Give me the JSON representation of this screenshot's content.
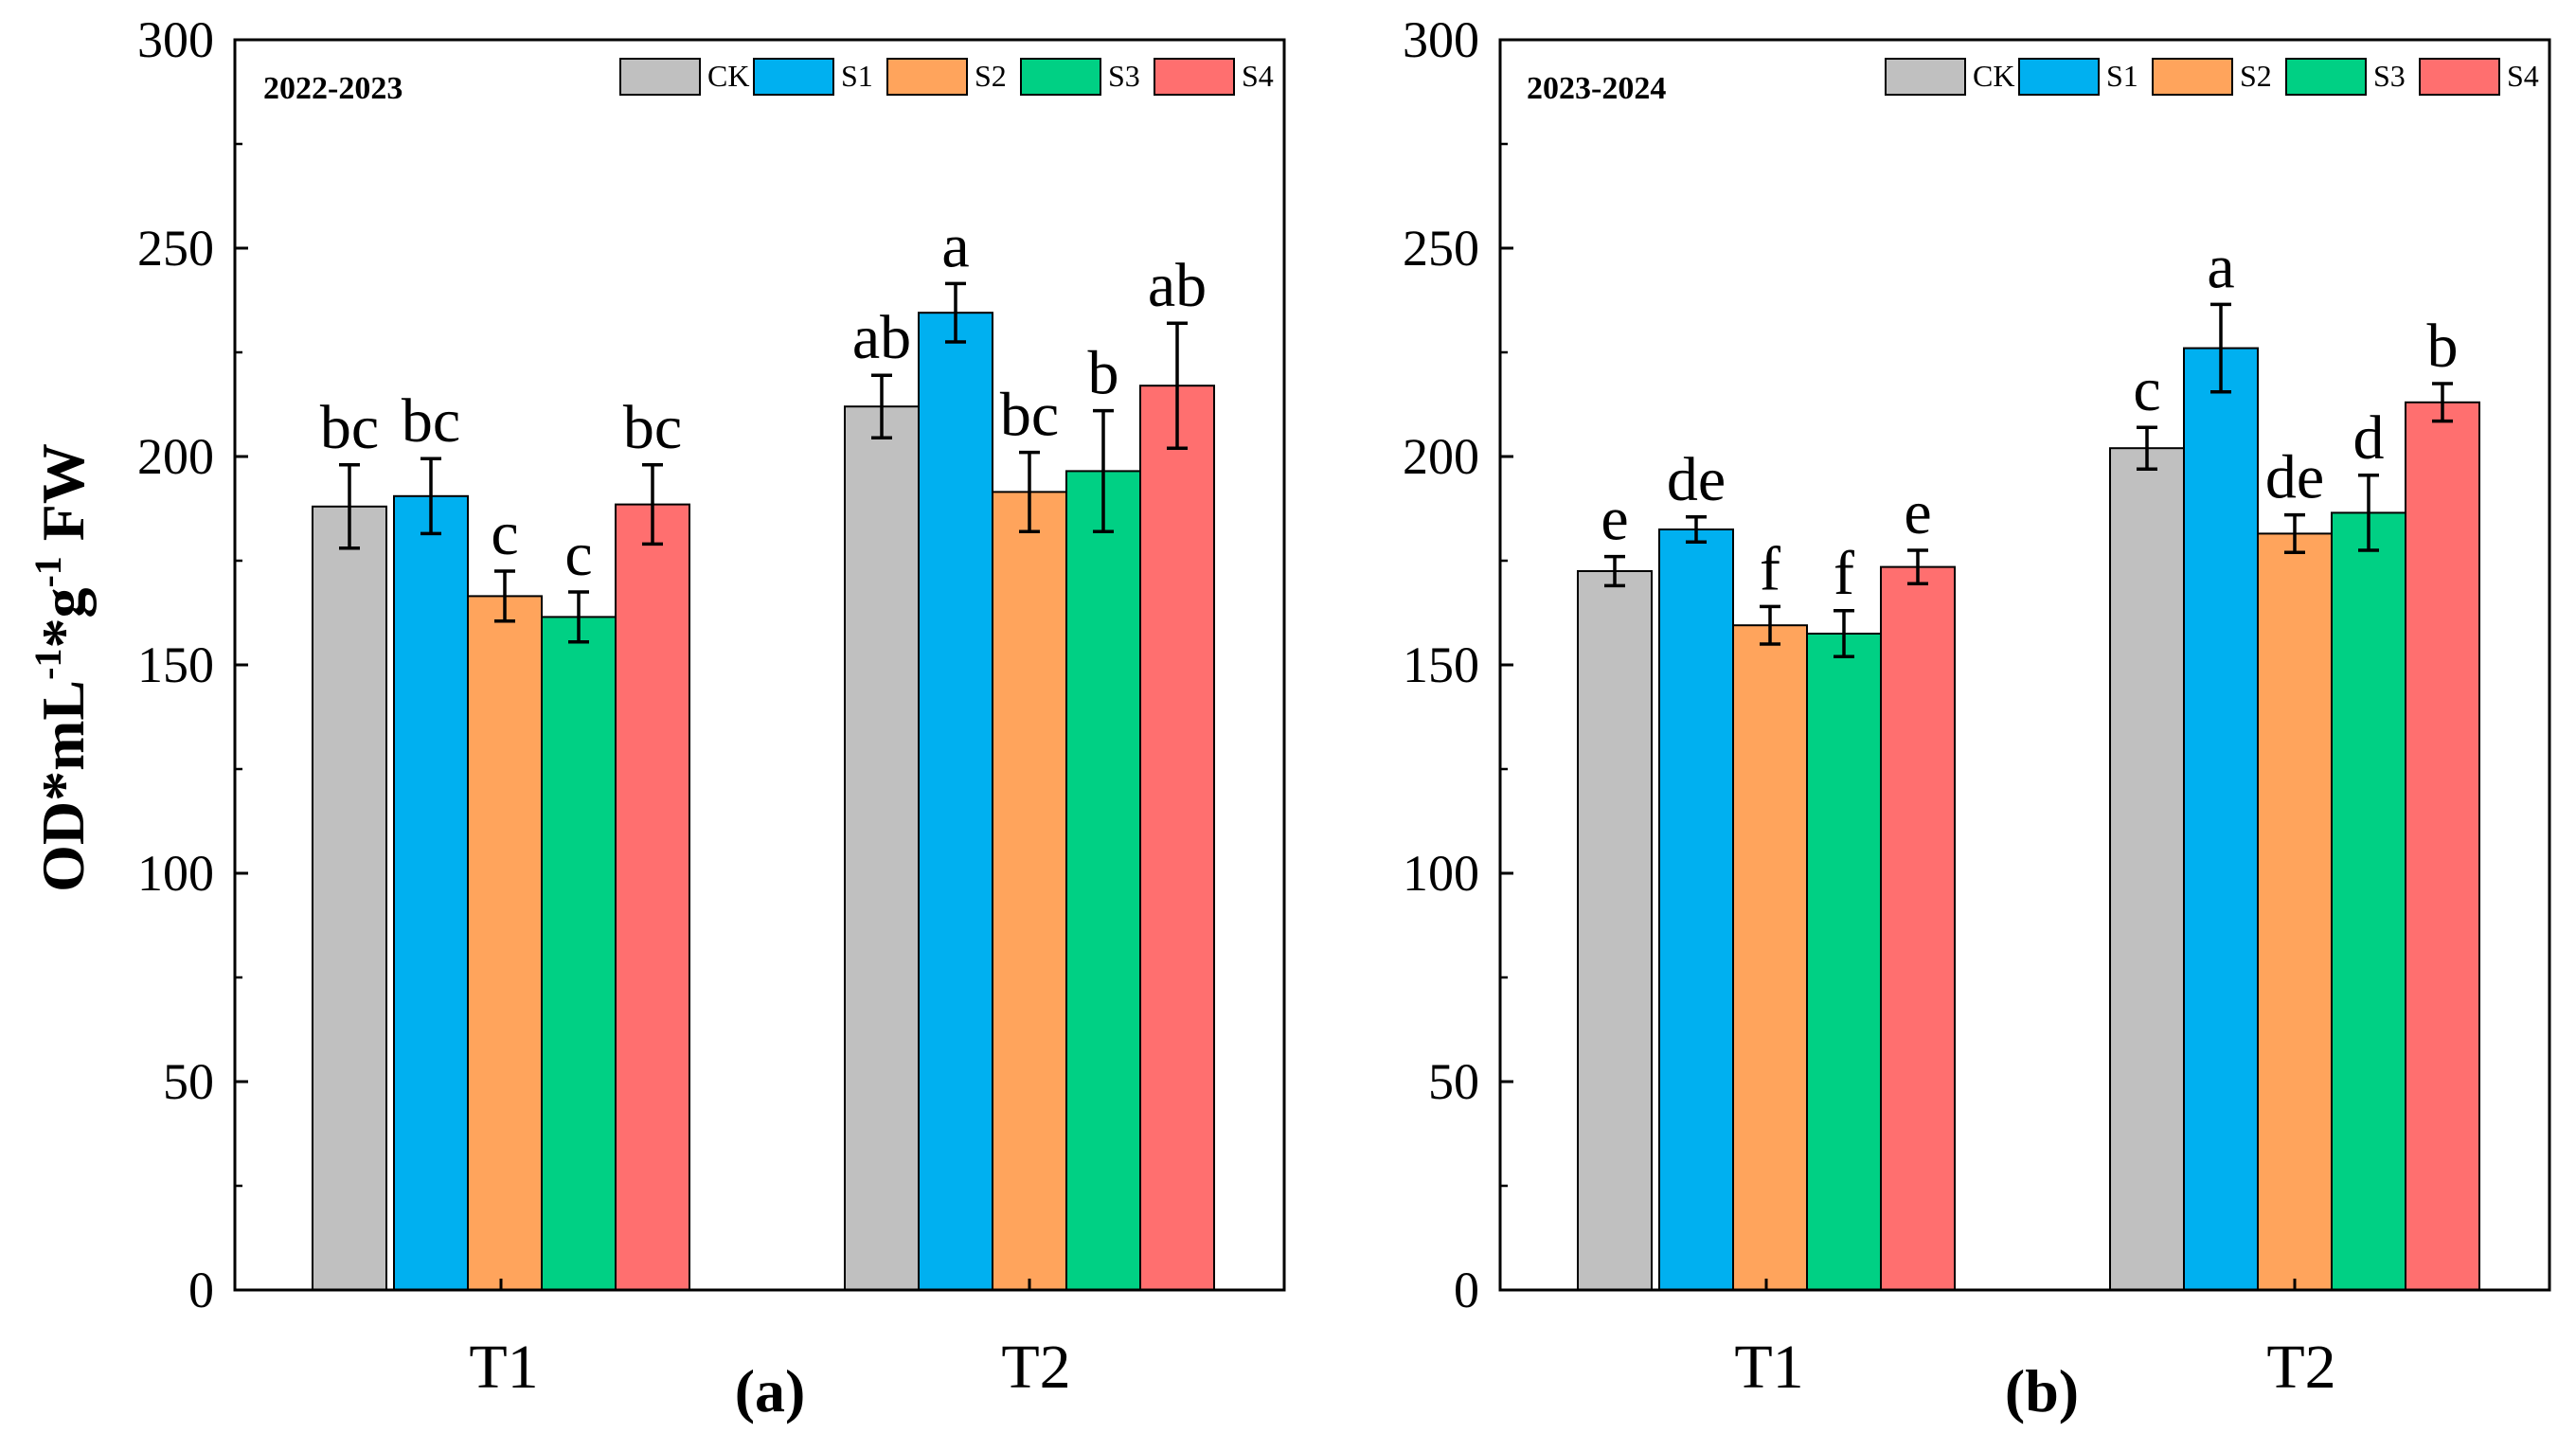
{
  "chart_data": [
    {
      "type": "bar",
      "panel_label": "(a)",
      "title": "2022-2023",
      "ylim": [
        0,
        300
      ],
      "yticks": [
        0,
        50,
        100,
        150,
        200,
        250,
        300
      ],
      "ylabel_parts": [
        "OD*mL",
        "-1",
        "*g",
        "-1",
        " FW"
      ],
      "categories": [
        "T1",
        "T2"
      ],
      "legend_position": "top-right",
      "series": [
        {
          "name": "CK",
          "color": "#C0C0C0",
          "values": [
            188,
            212
          ],
          "errors": [
            10,
            7.5
          ],
          "letters": [
            "bc",
            "ab"
          ]
        },
        {
          "name": "S1",
          "color": "#00B0F0",
          "values": [
            190.5,
            234.5
          ],
          "errors": [
            9,
            7
          ],
          "letters": [
            "bc",
            "a"
          ]
        },
        {
          "name": "S2",
          "color": "#FFA45C",
          "values": [
            166.5,
            191.5
          ],
          "errors": [
            6,
            9.5
          ],
          "letters": [
            "c",
            "bc"
          ]
        },
        {
          "name": "S3",
          "color": "#00D084",
          "values": [
            161.5,
            196.5
          ],
          "errors": [
            6,
            14.5
          ],
          "letters": [
            "c",
            "b"
          ]
        },
        {
          "name": "S4",
          "color": "#FF6F6F",
          "values": [
            188.5,
            217
          ],
          "errors": [
            9.5,
            15
          ],
          "letters": [
            "bc",
            "ab"
          ]
        }
      ]
    },
    {
      "type": "bar",
      "panel_label": "(b)",
      "title": "2023-2024",
      "ylim": [
        0,
        300
      ],
      "yticks": [
        0,
        50,
        100,
        150,
        200,
        250,
        300
      ],
      "categories": [
        "T1",
        "T2"
      ],
      "legend_position": "top-right",
      "series": [
        {
          "name": "CK",
          "color": "#C0C0C0",
          "values": [
            172.5,
            202
          ],
          "errors": [
            3.5,
            5
          ],
          "letters": [
            "e",
            "c"
          ]
        },
        {
          "name": "S1",
          "color": "#00B0F0",
          "values": [
            182.5,
            226
          ],
          "errors": [
            3,
            10.5
          ],
          "letters": [
            "de",
            "a"
          ]
        },
        {
          "name": "S2",
          "color": "#FFA45C",
          "values": [
            159.5,
            181.5
          ],
          "errors": [
            4.5,
            4.5
          ],
          "letters": [
            "f",
            "de"
          ]
        },
        {
          "name": "S3",
          "color": "#00D084",
          "values": [
            157.5,
            186.5
          ],
          "errors": [
            5.5,
            9
          ],
          "letters": [
            "f",
            "d"
          ]
        },
        {
          "name": "S4",
          "color": "#FF6F6F",
          "values": [
            173.5,
            213
          ],
          "errors": [
            4,
            4.5
          ],
          "letters": [
            "e",
            "b"
          ]
        }
      ]
    }
  ]
}
